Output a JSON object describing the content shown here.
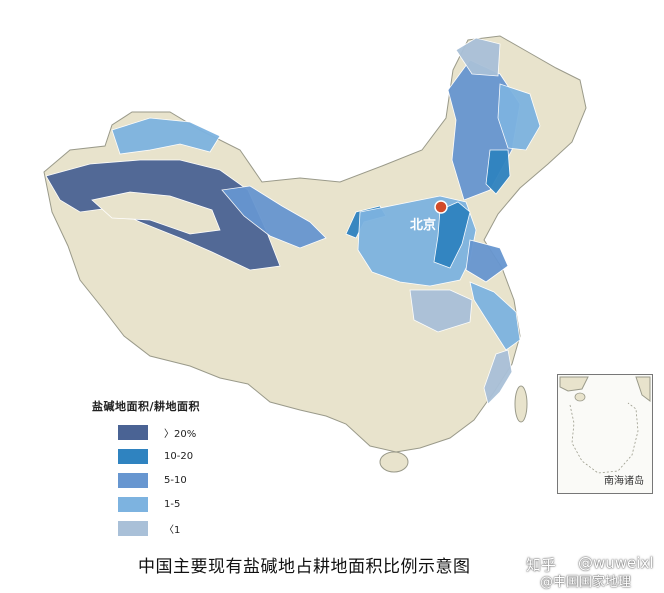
{
  "map": {
    "capital_label": "北京",
    "caption": "中国主要现有盐碱地占耕地面积比例示意图",
    "inset_label": "南海诸岛",
    "base_color": "#e8e3cc",
    "border_color": "#9a9a8a",
    "sea_color": "#ffffff",
    "capital_marker_color": "#d24b2a"
  },
  "legend": {
    "title": "盐碱地面积/耕地面积",
    "items": [
      {
        "label": "〉20%",
        "color": "#4a6394"
      },
      {
        "label": "10-20",
        "color": "#2f83c0"
      },
      {
        "label": "5-10",
        "color": "#6796d0"
      },
      {
        "label": "1-5",
        "color": "#7db3e0"
      },
      {
        "label": "〈1",
        "color": "#a9c0d8"
      }
    ]
  },
  "watermark": {
    "zhihu": "知乎",
    "user": "@wuweixl",
    "source": "@中国国家地理"
  }
}
